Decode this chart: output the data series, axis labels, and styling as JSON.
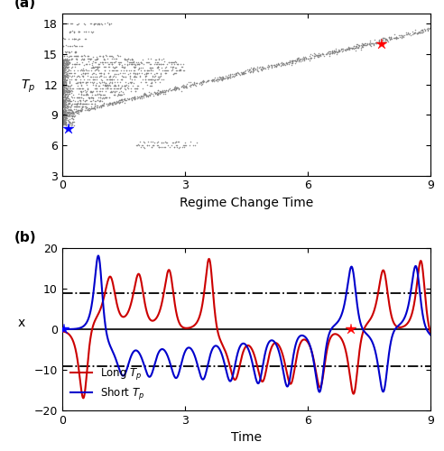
{
  "fig_width": 4.92,
  "fig_height": 5.0,
  "dpi": 100,
  "panel_a": {
    "xlabel": "Regime Change Time",
    "ylabel": "T_p",
    "xlim": [
      0,
      9
    ],
    "ylim": [
      3,
      19
    ],
    "yticks": [
      3,
      6,
      9,
      12,
      15,
      18
    ],
    "xticks": [
      0,
      3,
      6,
      9
    ],
    "blue_star": [
      0.15,
      7.6
    ],
    "red_star": [
      7.8,
      16.0
    ],
    "scatter_color": "#808080",
    "scatter_size": 1.2
  },
  "panel_b": {
    "xlabel": "Time",
    "ylabel": "x",
    "xlim": [
      0,
      9
    ],
    "ylim": [
      -20,
      20
    ],
    "yticks": [
      -20,
      -10,
      0,
      10,
      20
    ],
    "xticks": [
      0,
      3,
      6,
      9
    ],
    "hline_solid": 0,
    "hline_dash1": 9.0,
    "hline_dash2": -9.0,
    "blue_star_x": 0.05,
    "blue_star_y": 0.0,
    "red_star_x": 7.05,
    "red_star_y": 0.0,
    "red_color": "#cc0000",
    "blue_color": "#0000cc",
    "legend_red": "Long $T_p$",
    "legend_blue": "Short $T_p$"
  }
}
